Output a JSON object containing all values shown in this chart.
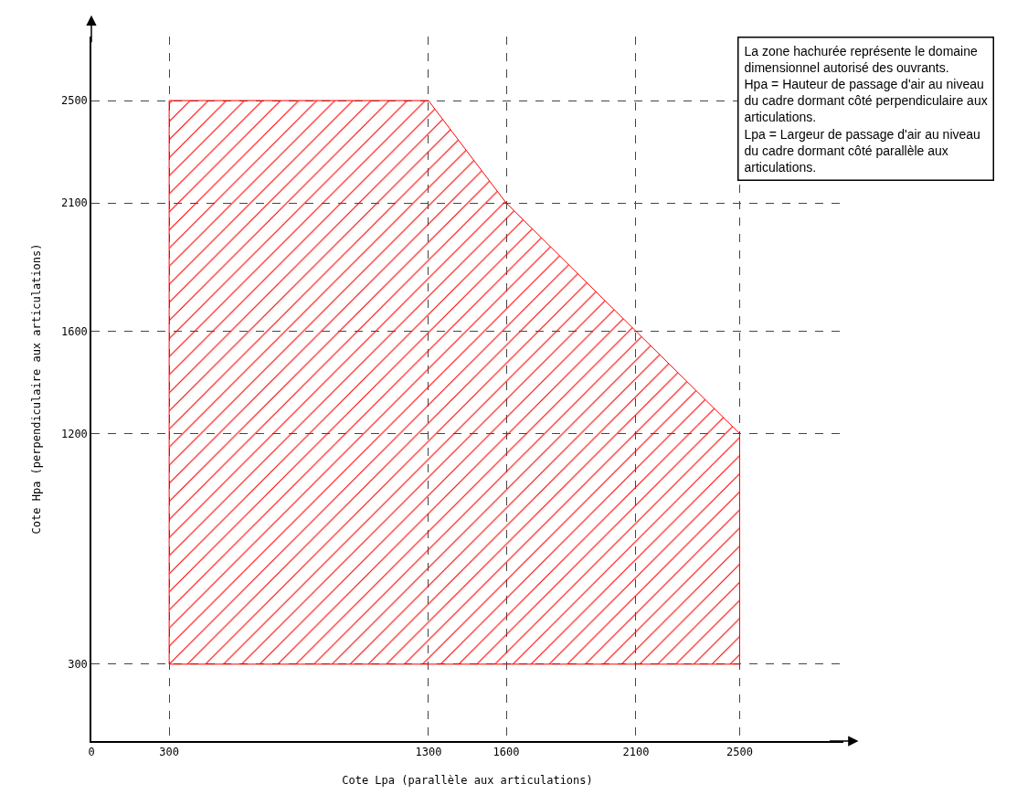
{
  "chart_data": {
    "type": "area",
    "xlabel": "Cote Lpa (parallèle aux articulations)",
    "ylabel": "Cote Hpa (perpendiculaire aux articulations)",
    "x": [
      300,
      300,
      1300,
      1600,
      2100,
      2500,
      2500,
      300
    ],
    "series": [
      {
        "color": "#ff0000",
        "values": [
          300,
          2500,
          2500,
          2100,
          1600,
          1200,
          300,
          300
        ]
      }
    ],
    "xlim": [
      0,
      2900
    ],
    "xticks": [
      0,
      300,
      1300,
      1600,
      2100,
      2500
    ],
    "ylim": [
      0,
      2750
    ],
    "yticks": [
      300,
      1200,
      1600,
      2100,
      2500
    ],
    "grid": true,
    "line_style": "solid",
    "marker": "none",
    "annotations": [
      "La zone hachurée représente le domaine dimensionnel autorisé des ouvrants.",
      "Hpa = Hauteur de passage d'air au niveau du cadre dormant côté perpendiculaire aux articulations.",
      "Lpa = Largeur de passage d'air au niveau du cadre dormant côté parallèle aux articulations."
    ]
  }
}
